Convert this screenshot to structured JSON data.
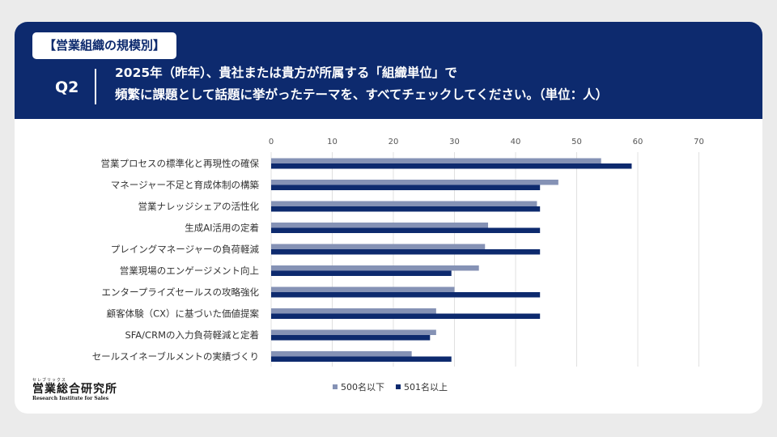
{
  "header": {
    "tag": "【営業組織の規模別】",
    "qnum": "Q2",
    "line1": "2025年（昨年）、貴社または貴方が所属する「組織単位」で",
    "line2": "頻繁に課題として話題に挙がったテーマを、すべてチェックしてください。（単位：人）"
  },
  "logo": {
    "kana": "セレブリックス",
    "main": "営業総合研究所",
    "en": "Research Institute for Sales"
  },
  "colors": {
    "header_bg": "#0d2a6e",
    "series1": "#8592b5",
    "series2": "#0d2a6e"
  },
  "chart_data": {
    "type": "bar",
    "orientation": "horizontal",
    "xlim": [
      0,
      70
    ],
    "ticks": [
      0,
      10,
      20,
      30,
      40,
      50,
      60,
      70
    ],
    "grid": true,
    "legend_position": "bottom",
    "categories": [
      "営業プロセスの標準化と再現性の確保",
      "マネージャー不足と育成体制の構築",
      "営業ナレッジシェアの活性化",
      "生成AI活用の定着",
      "プレイングマネージャーの負荷軽減",
      "営業現場のエンゲージメント向上",
      "エンタープライズセールスの攻略強化",
      "顧客体験（CX）に基づいた価値提案",
      "SFA/CRMの入力負荷軽減と定着",
      "セールスイネーブルメントの実績づくり"
    ],
    "series": [
      {
        "name": "500名以下",
        "values": [
          54,
          47,
          43.5,
          35.5,
          35,
          34,
          30,
          27,
          27,
          23
        ]
      },
      {
        "name": "501名以上",
        "values": [
          59,
          44,
          44,
          44,
          44,
          29.5,
          44,
          44,
          26,
          29.5
        ]
      }
    ]
  }
}
